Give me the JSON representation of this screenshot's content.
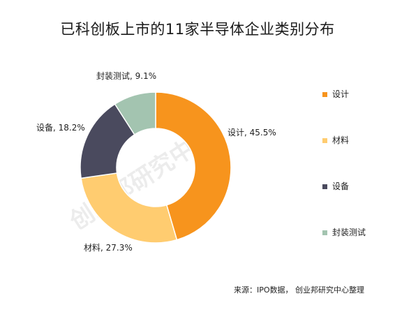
{
  "title": "已科创板上市的11家半导体企业类别分布",
  "source": "来源：IPO数据， 创业邦研究中心整理",
  "watermark": "创业邦研究中心",
  "chart_data": {
    "type": "pie",
    "variant": "donut",
    "categories": [
      "设计",
      "材料",
      "设备",
      "封装测试"
    ],
    "values": [
      45.5,
      27.3,
      18.2,
      9.1
    ],
    "data_labels": [
      "设计, 45.5%",
      "材料, 27.3%",
      "设备, 18.2%",
      "封装测试, 9.1%"
    ],
    "colors": [
      "#F7941D",
      "#FFCC70",
      "#4A4A5E",
      "#A3C4B0"
    ],
    "legend": "right",
    "start_angle": "12 o'clock, clockwise"
  }
}
